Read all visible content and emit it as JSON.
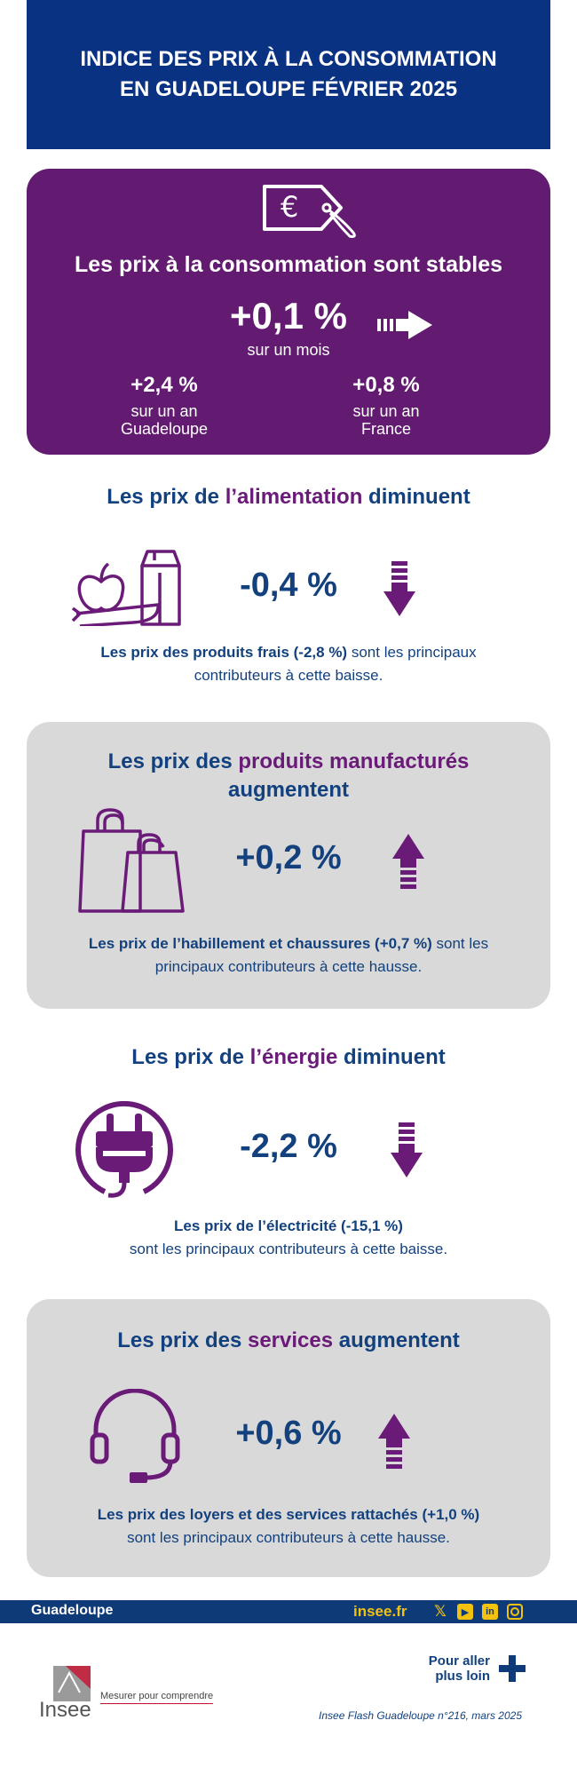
{
  "header": {
    "title": "INDICE DES PRIX À LA CONSOMMATION\nEN GUADELOUPE FÉVRIER 2025"
  },
  "summary": {
    "headline": "Les prix à la consommation sont stables",
    "month_value": "+0,1 %",
    "month_label": "sur un mois",
    "left_value": "+2,4 %",
    "left_label1": "sur un an",
    "left_label2": "Guadeloupe",
    "right_value": "+0,8 %",
    "right_label1": "sur un an",
    "right_label2": "France"
  },
  "alimentation": {
    "title_pre": "Les prix de ",
    "title_accent": "l’alimentation",
    "title_post": " diminuent",
    "value": "-0,4 %",
    "note_bold": "Les prix des produits frais (-2,8 %)",
    "note_rest": " sont les principaux contributeurs à cette baisse."
  },
  "manufactures": {
    "title_pre": "Les prix des ",
    "title_accent": "produits manufacturés",
    "title_post": "augmentent",
    "value": "+0,2 %",
    "note_bold": "Les prix de l’habillement et chaussures (+0,7 %)",
    "note_rest": " sont les principaux contributeurs à cette hausse."
  },
  "energie": {
    "title_pre": "Les prix de ",
    "title_accent": "l’énergie",
    "title_post": " diminuent",
    "value": "-2,2 %",
    "note_bold": "Les prix de l’électricité (-15,1 %)",
    "note_rest": "sont les principaux contributeurs à cette baisse."
  },
  "services": {
    "title_pre": "Les prix des ",
    "title_accent": "services",
    "title_post": " augmentent",
    "value": "+0,6 %",
    "note_bold": "Les prix des loyers et des services rattachés (+1,0 %)",
    "note_rest": "sont les principaux contributeurs à cette hausse."
  },
  "footer": {
    "region": "Guadeloupe",
    "site": "insee.fr",
    "social": [
      "x-icon",
      "youtube-icon",
      "linkedin-icon",
      "instagram-icon"
    ],
    "more_line1": "Pour aller",
    "more_line2": "plus loin",
    "logo_text": "Insee",
    "tagline": "Mesurer pour comprendre",
    "publication": "Insee Flash Guadeloupe n°216, mars 2025"
  },
  "colors": {
    "navy": "#0a3282",
    "purple": "#621b70",
    "gray": "#d9d9d9",
    "yellow": "#f3c20e"
  }
}
